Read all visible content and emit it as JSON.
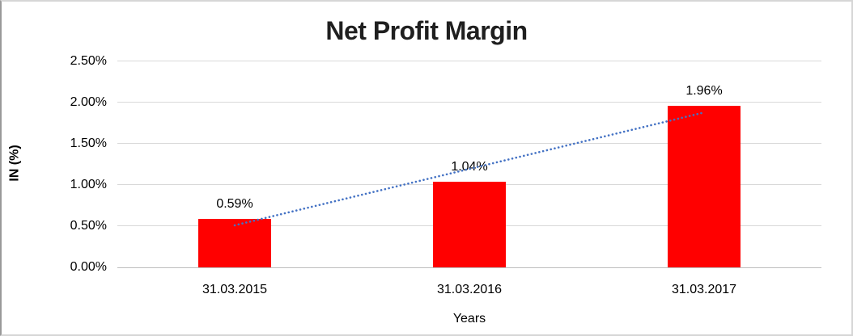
{
  "chart_data": {
    "type": "bar",
    "title": "Net Profit Margin",
    "xlabel": "Years",
    "ylabel": "IN (%)",
    "categories": [
      "31.03.2015",
      "31.03.2016",
      "31.03.2017"
    ],
    "values": [
      0.59,
      1.04,
      1.96
    ],
    "data_labels": [
      "0.59%",
      "1.04%",
      "1.96%"
    ],
    "yticks": [
      "0.00%",
      "0.50%",
      "1.00%",
      "1.50%",
      "2.00%",
      "2.50%"
    ],
    "ylim": [
      0,
      2.5
    ],
    "grid": "horizontal",
    "legend": "none",
    "bar_color": "#ff0000",
    "gridline_color": "#d9d9d9",
    "trendline": {
      "type": "linear",
      "style": "dotted",
      "color": "#4472c4",
      "start_value": 0.51,
      "end_value": 1.88
    }
  }
}
